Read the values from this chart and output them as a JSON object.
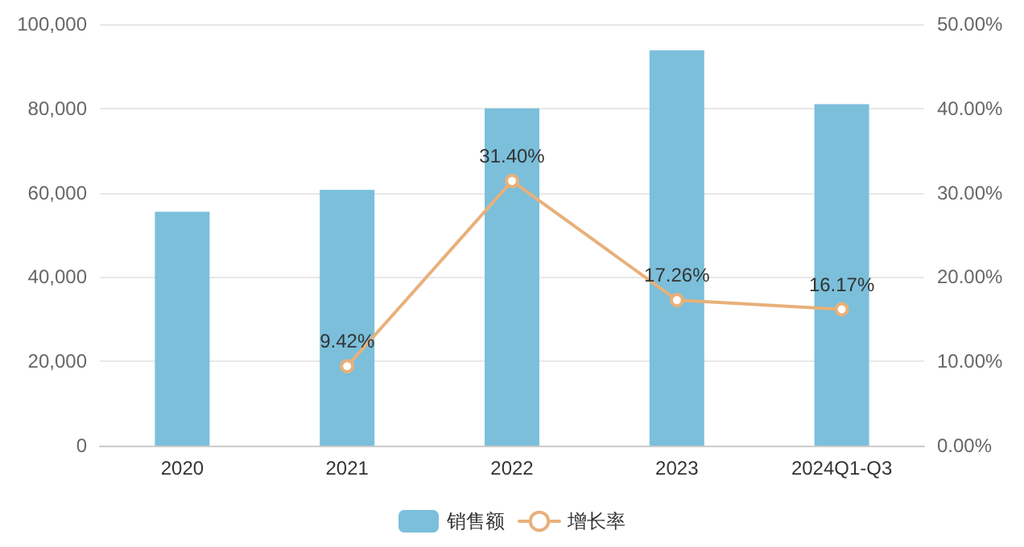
{
  "chart_data": {
    "type": "bar",
    "categories": [
      "2020",
      "2021",
      "2022",
      "2023",
      "2024Q1-Q3"
    ],
    "series": [
      {
        "name": "销售额",
        "color": "#7bbfdb",
        "values": [
          55500,
          60700,
          80000,
          93800,
          81000
        ]
      },
      {
        "name": "增长率",
        "type": "line",
        "axis": "y2",
        "color": "#e8b07a",
        "values": [
          null,
          9.42,
          31.4,
          17.26,
          16.17
        ],
        "value_labels": [
          null,
          "9.42%",
          "31.40%",
          "17.26%",
          "16.17%"
        ]
      }
    ],
    "ylim": [
      0,
      100000
    ],
    "yticks": [
      {
        "value": 0,
        "label": "0"
      },
      {
        "value": 20000,
        "label": "20,000"
      },
      {
        "value": 40000,
        "label": "40,000"
      },
      {
        "value": 60000,
        "label": "60,000"
      },
      {
        "value": 80000,
        "label": "80,000"
      },
      {
        "value": 100000,
        "label": "100,000"
      }
    ],
    "y2lim": [
      0,
      50
    ],
    "y2ticks": [
      {
        "value": 0,
        "label": "0.00%"
      },
      {
        "value": 10,
        "label": "10.00%"
      },
      {
        "value": 20,
        "label": "20.00%"
      },
      {
        "value": 30,
        "label": "30.00%"
      },
      {
        "value": 40,
        "label": "40.00%"
      },
      {
        "value": 50,
        "label": "50.00%"
      }
    ],
    "grid": "y",
    "legend": "bottom",
    "marker": "circle",
    "line_style": "solid"
  }
}
